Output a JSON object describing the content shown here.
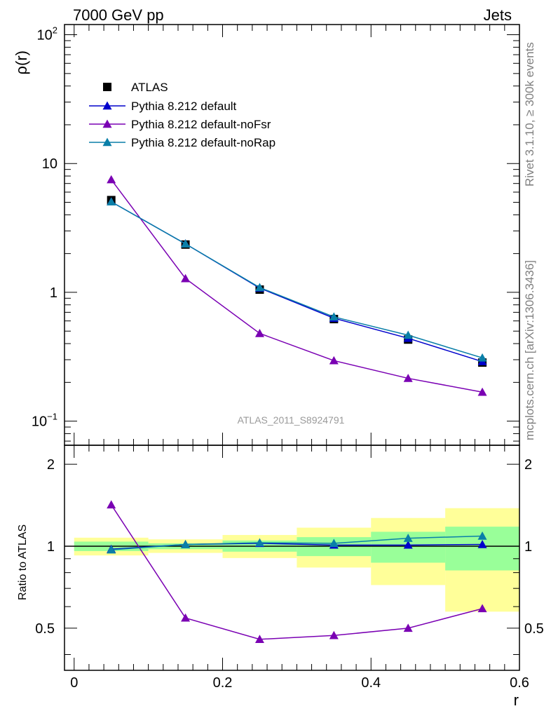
{
  "header": {
    "left": "7000 GeV pp",
    "right": "Jets"
  },
  "side_labels": {
    "rivet": "Rivet 3.1.10, ≥ 300k events",
    "mcplots": "mcplots.cern.ch [arXiv:1306.3436]"
  },
  "analysis_label": "ATLAS_2011_S8924791",
  "chart_data": [
    {
      "type": "line",
      "panel": "main",
      "ylabel": "ρ(r)",
      "yscale": "log",
      "ylim": [
        0.065,
        120
      ],
      "xlim": [
        -0.013,
        0.6
      ],
      "ytick_labels": [
        "10",
        "1"
      ],
      "ytick_powers": [
        {
          "base": "10",
          "exp": "2"
        },
        {
          "base": "10",
          "exp": "−1"
        }
      ],
      "legend": [
        "ATLAS",
        "Pythia 8.212 default",
        "Pythia 8.212 default-noFsr",
        "Pythia 8.212 default-noRap"
      ],
      "x": [
        0.05,
        0.15,
        0.25,
        0.35,
        0.45,
        0.55
      ],
      "data": {
        "name": "ATLAS",
        "color": "#000000",
        "values": [
          5.2,
          2.35,
          1.05,
          0.62,
          0.43,
          0.285
        ]
      },
      "series": [
        {
          "name": "Pythia 8.212 default",
          "color": "#0000cc",
          "values": [
            5.05,
            2.38,
            1.08,
            0.63,
            0.44,
            0.29
          ]
        },
        {
          "name": "Pythia 8.212 default-noFsr",
          "color": "#7a00b3",
          "values": [
            7.5,
            1.28,
            0.48,
            0.295,
            0.215,
            0.168
          ]
        },
        {
          "name": "Pythia 8.212 default-noRap",
          "color": "#0a7fa8",
          "values": [
            5.05,
            2.38,
            1.09,
            0.645,
            0.465,
            0.31
          ]
        }
      ]
    },
    {
      "type": "line",
      "panel": "ratio",
      "ylabel": "Ratio to ATLAS",
      "xlabel": "r",
      "ylim": [
        0.35,
        2.35
      ],
      "xlim": [
        -0.013,
        0.6
      ],
      "xtick_labels": [
        "0",
        "0.2",
        "0.4",
        "0.6"
      ],
      "ytick_labels": [
        "2",
        "1",
        "0.5"
      ],
      "x": [
        0.05,
        0.15,
        0.25,
        0.35,
        0.45,
        0.55
      ],
      "bins": [
        0.0,
        0.1,
        0.2,
        0.3,
        0.4,
        0.5,
        0.6
      ],
      "band_inner": {
        "color": "#99ff99",
        "low": [
          0.96,
          0.975,
          0.955,
          0.92,
          0.87,
          0.815
        ],
        "high": [
          1.04,
          1.025,
          1.05,
          1.08,
          1.13,
          1.18
        ]
      },
      "band_outer": {
        "color": "#ffff99",
        "low": [
          0.925,
          0.945,
          0.905,
          0.835,
          0.72,
          0.575
        ],
        "high": [
          1.075,
          1.06,
          1.1,
          1.17,
          1.27,
          1.38
        ]
      },
      "series": [
        {
          "name": "Pythia 8.212 default",
          "color": "#0000cc",
          "values": [
            0.975,
            1.015,
            1.025,
            1.01,
            1.01,
            1.015
          ]
        },
        {
          "name": "Pythia 8.212 default-noFsr",
          "color": "#7a00b3",
          "values": [
            1.42,
            0.545,
            0.455,
            0.47,
            0.5,
            0.59
          ]
        },
        {
          "name": "Pythia 8.212 default-noRap",
          "color": "#0a7fa8",
          "values": [
            0.97,
            1.015,
            1.03,
            1.025,
            1.07,
            1.09
          ]
        }
      ]
    }
  ]
}
